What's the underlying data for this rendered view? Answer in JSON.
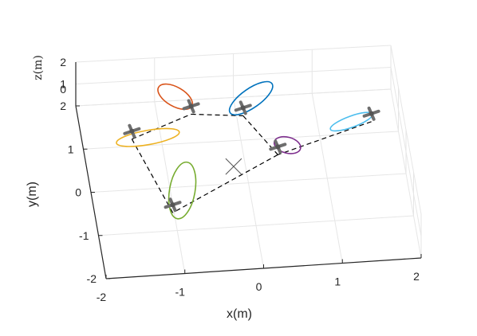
{
  "chart_data": {
    "type": "scatter",
    "title": "",
    "xlabel": "x(m)",
    "ylabel": "y(m)",
    "zlabel": "z(m)",
    "xlim": [
      -2,
      2
    ],
    "ylim": [
      -2,
      2
    ],
    "zlim": [
      0,
      2
    ],
    "x_ticks": [
      "-2",
      "-1",
      "0",
      "1",
      "2"
    ],
    "y_ticks": [
      "-2",
      "-1",
      "0",
      "1",
      "2"
    ],
    "z_ticks": [
      "0",
      "1",
      "2"
    ],
    "grid": true,
    "center_marker": {
      "x": -0.15,
      "y": 0.4,
      "symbol": "x"
    },
    "drones": [
      {
        "x": -0.55,
        "y": 1.85,
        "color": "#D95319"
      },
      {
        "x": 0.1,
        "y": 1.75,
        "color": "#0072BD"
      },
      {
        "x": -1.35,
        "y": 1.35,
        "color": "#EDB120"
      },
      {
        "x": 1.7,
        "y": 1.45,
        "color": "#4DBEEE"
      },
      {
        "x": 0.45,
        "y": 0.8,
        "color": "#7E2F8E"
      },
      {
        "x": -1.0,
        "y": -0.4,
        "color": "#77AC30"
      }
    ],
    "formation_edges": [
      [
        0,
        1
      ],
      [
        1,
        4
      ],
      [
        4,
        5
      ],
      [
        5,
        2
      ],
      [
        2,
        0
      ],
      [
        3,
        4
      ]
    ]
  }
}
